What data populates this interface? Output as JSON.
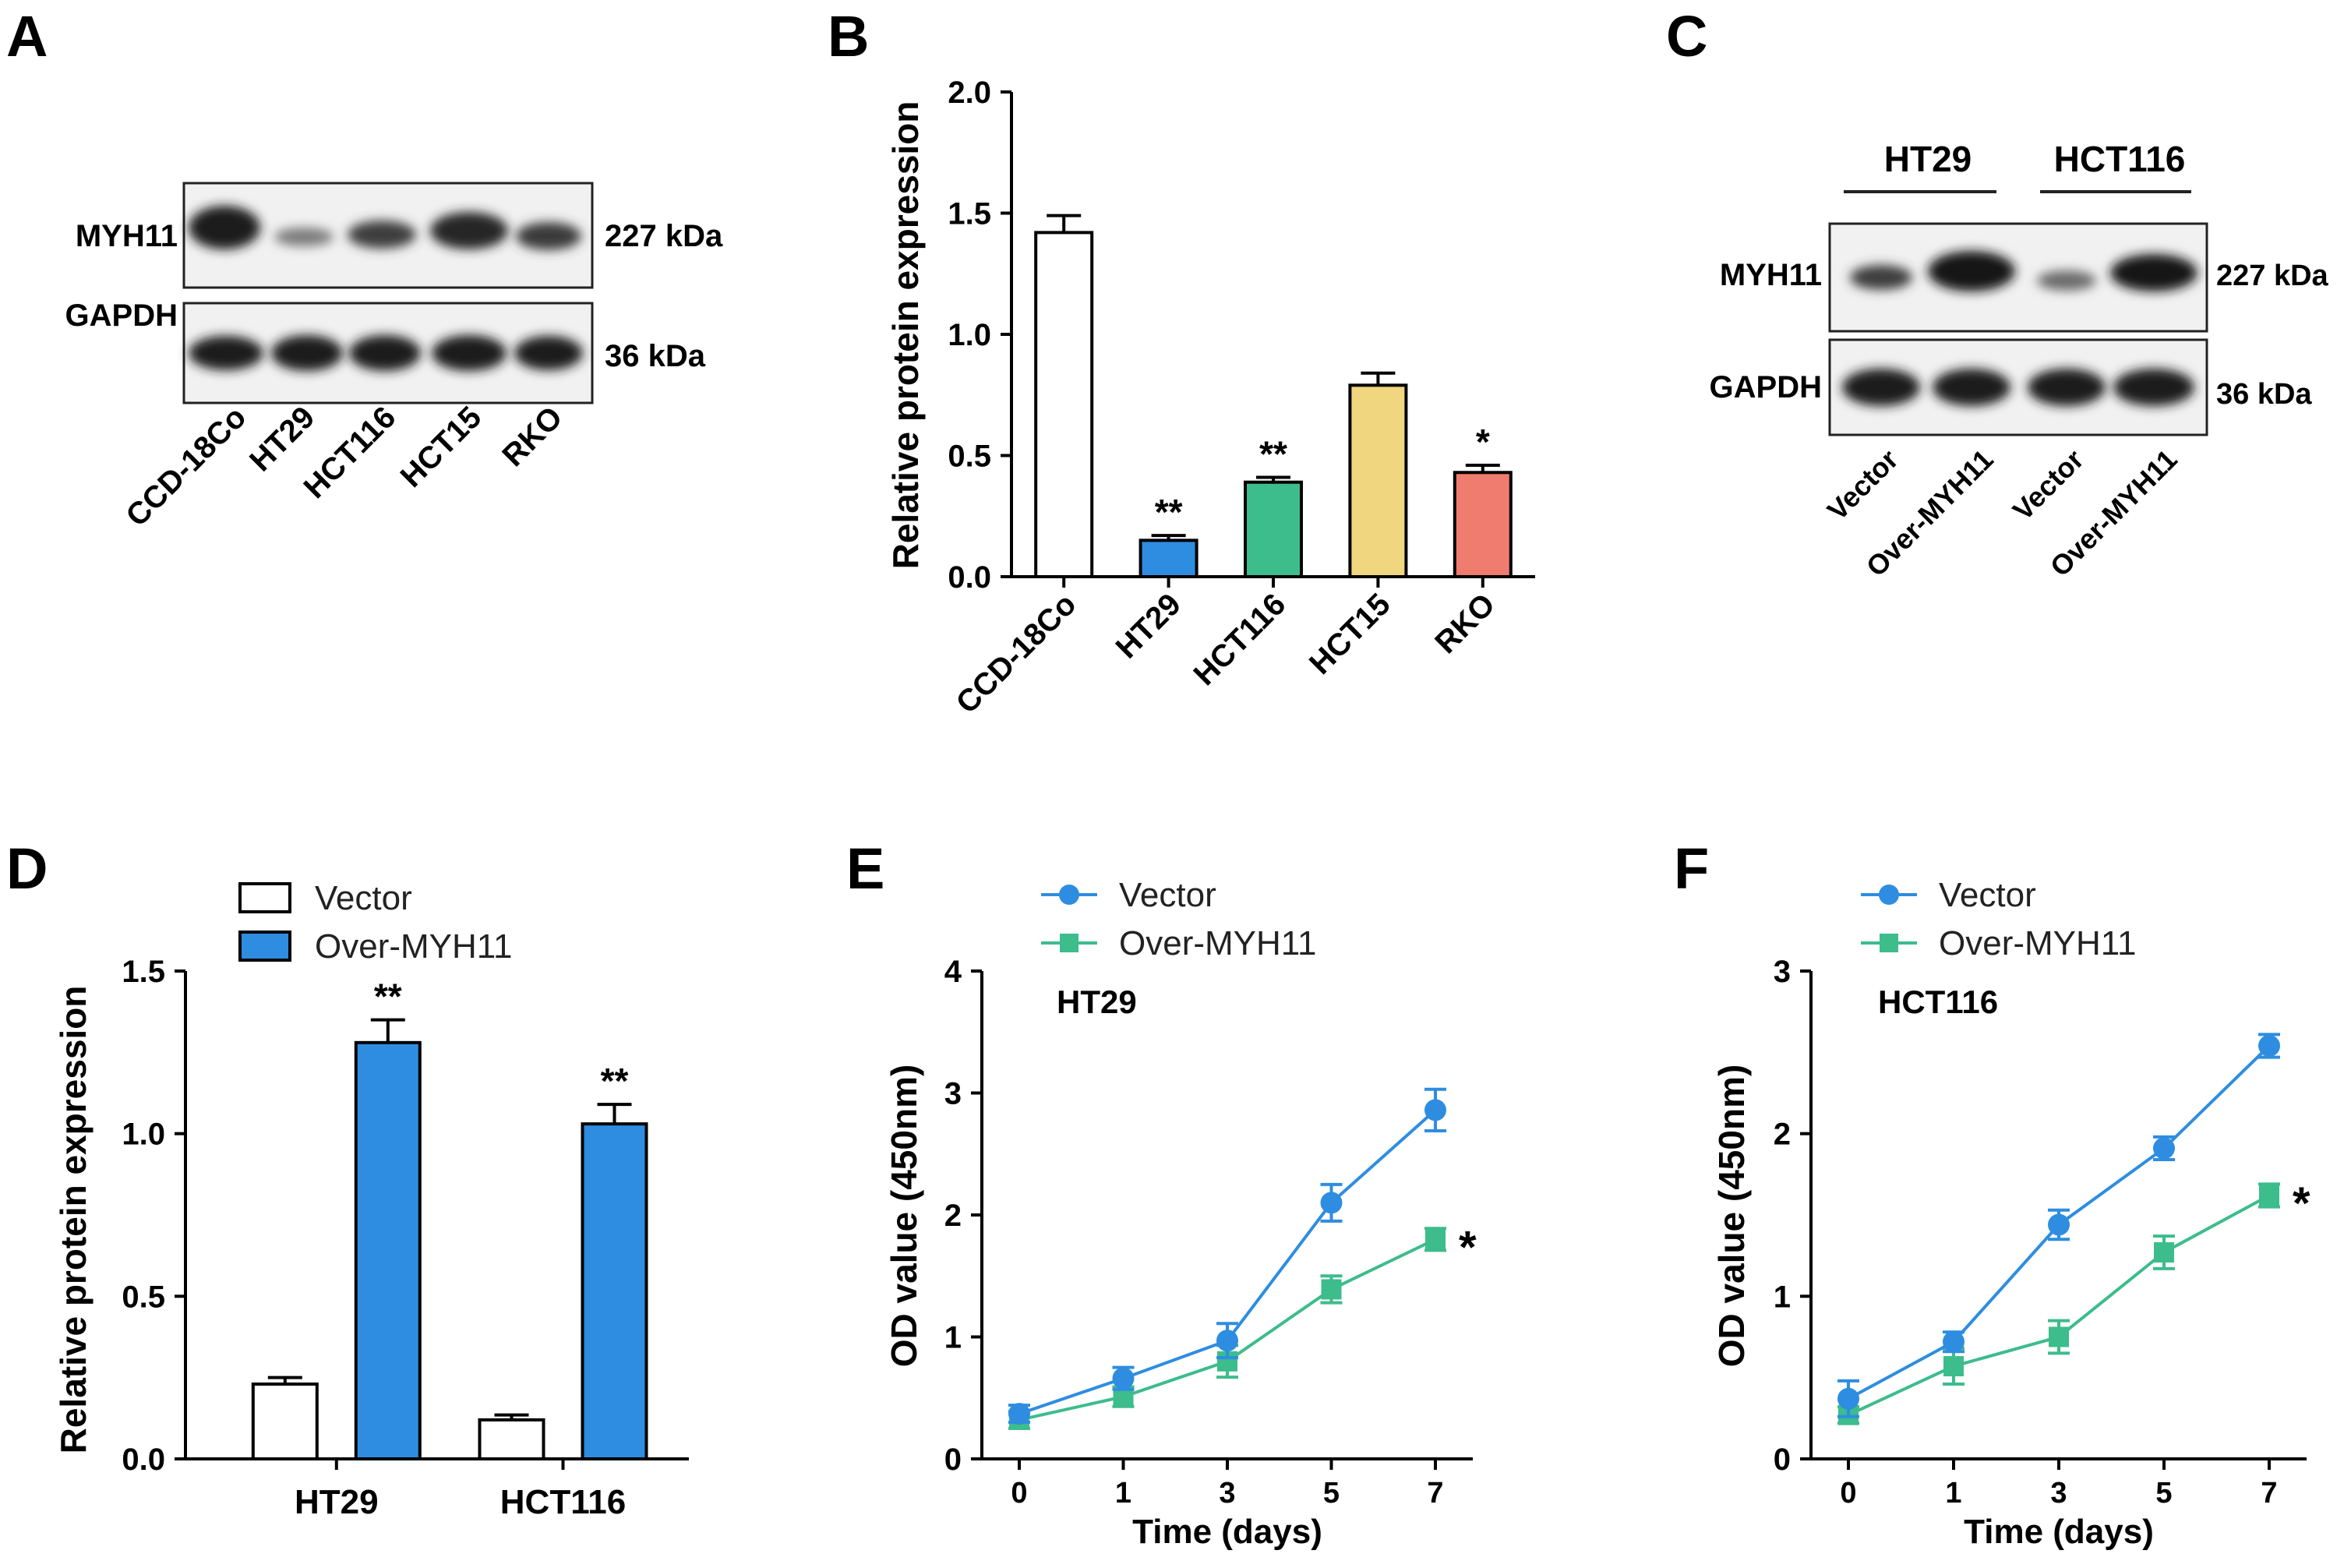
{
  "panels": {
    "A": {
      "letter": "A",
      "row_labels": [
        "MYH11",
        "GAPDH"
      ],
      "kda_labels": [
        "227 kDa",
        "36 kDa"
      ],
      "lane_labels": [
        "CCD-18Co",
        "HT29",
        "HCT116",
        "HCT15",
        "RKO"
      ]
    },
    "C": {
      "letter": "C",
      "group_labels": [
        "HT29",
        "HCT116"
      ],
      "row_labels": [
        "MYH11",
        "GAPDH"
      ],
      "kda_labels": [
        "227 kDa",
        "36 kDa"
      ],
      "lane_labels": [
        "Vector",
        "Over-MYH11",
        "Vector",
        "Over-MYH11"
      ]
    }
  },
  "chart_data": [
    {
      "panel": "B",
      "letter": "B",
      "type": "bar",
      "ylabel": "Relative protein expression",
      "xlabel": "",
      "ylim": [
        0,
        2.0
      ],
      "yticks": [
        "0.0",
        "0.5",
        "1.0",
        "1.5",
        "2.0"
      ],
      "categories": [
        "CCD-18Co",
        "HT29",
        "HCT116",
        "HCT15",
        "RKO"
      ],
      "values": [
        1.42,
        0.15,
        0.39,
        0.79,
        0.43
      ],
      "errors": [
        0.07,
        0.02,
        0.02,
        0.05,
        0.03
      ],
      "significance": [
        "",
        "**",
        "**",
        "",
        "*"
      ],
      "colors": [
        "#ffffff",
        "#2e8de0",
        "#3dbc8c",
        "#efd67f",
        "#f07b6f"
      ]
    },
    {
      "panel": "D",
      "letter": "D",
      "type": "bar",
      "ylabel": "Relative protein expression",
      "xlabel": "",
      "ylim": [
        0,
        1.5
      ],
      "yticks": [
        "0.0",
        "0.5",
        "1.0",
        "1.5"
      ],
      "categories": [
        "HT29",
        "HCT116"
      ],
      "legend_position": "top-left",
      "series": [
        {
          "name": "Vector",
          "values": [
            0.23,
            0.12
          ],
          "errors": [
            0.02,
            0.015
          ],
          "significance": [
            "",
            ""
          ],
          "color": "#ffffff"
        },
        {
          "name": "Over-MYH11",
          "values": [
            1.28,
            1.03
          ],
          "errors": [
            0.07,
            0.06
          ],
          "significance": [
            "**",
            "**"
          ],
          "color": "#2e8de0"
        }
      ]
    },
    {
      "panel": "E",
      "letter": "E",
      "type": "line",
      "annotation": "HT29",
      "xlabel": "Time (days)",
      "ylabel": "OD value (450nm)",
      "x": [
        "0",
        "1",
        "3",
        "5",
        "7"
      ],
      "ylim": [
        0,
        4
      ],
      "yticks": [
        "0",
        "1",
        "2",
        "3",
        "4"
      ],
      "legend_position": "top-left",
      "series": [
        {
          "name": "Vector",
          "marker": "circle",
          "color": "#2e8de0",
          "values": [
            0.37,
            0.66,
            0.97,
            2.1,
            2.86
          ],
          "errors": [
            0.07,
            0.09,
            0.14,
            0.15,
            0.17
          ]
        },
        {
          "name": "Over-MYH11",
          "marker": "square",
          "color": "#3dbc8c",
          "values": [
            0.32,
            0.51,
            0.8,
            1.39,
            1.8
          ],
          "errors": [
            0.07,
            0.08,
            0.13,
            0.11,
            0.09
          ]
        }
      ],
      "significance": "*"
    },
    {
      "panel": "F",
      "letter": "F",
      "type": "line",
      "annotation": "HCT116",
      "xlabel": "Time (days)",
      "ylabel": "OD value (450nm)",
      "x": [
        "0",
        "1",
        "3",
        "5",
        "7"
      ],
      "ylim": [
        0,
        3
      ],
      "yticks": [
        "0",
        "1",
        "2",
        "3"
      ],
      "legend_position": "top-left",
      "series": [
        {
          "name": "Vector",
          "marker": "circle",
          "color": "#2e8de0",
          "values": [
            0.37,
            0.72,
            1.44,
            1.91,
            2.54
          ],
          "errors": [
            0.11,
            0.06,
            0.09,
            0.07,
            0.07
          ]
        },
        {
          "name": "Over-MYH11",
          "marker": "square",
          "color": "#3dbc8c",
          "values": [
            0.27,
            0.57,
            0.75,
            1.27,
            1.62
          ],
          "errors": [
            0.05,
            0.11,
            0.1,
            0.1,
            0.07
          ]
        }
      ],
      "significance": "*"
    }
  ]
}
